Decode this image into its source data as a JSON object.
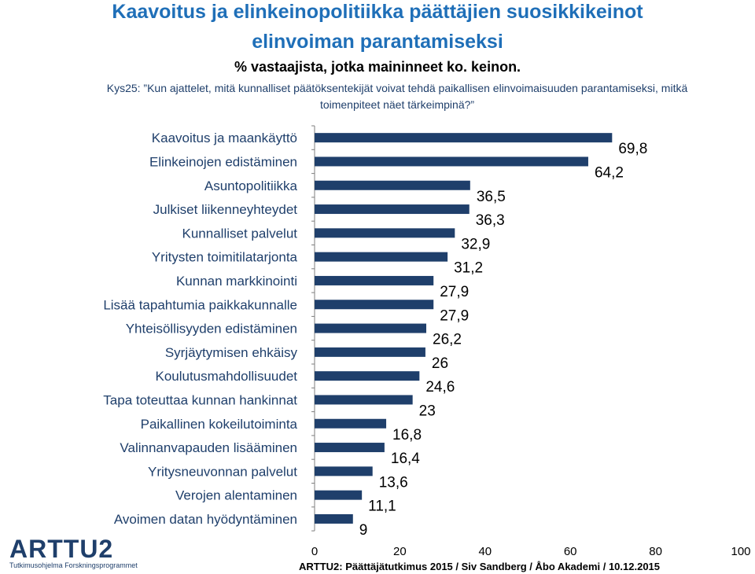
{
  "header": {
    "title_line1": "Kaavoitus ja elinkeinopolitiikka päättäjien suosikkikeinot",
    "title_line2": "elinvoiman parantamiseksi",
    "subtitle": "% vastaajista, jotka maininneet ko. keinon.",
    "question_line1": "Kys25: ”Kun ajattelet, mitä kunnalliset päätöksentekijät voivat tehdä paikallisen elinvoimaisuuden parantamiseksi, mitkä",
    "question_line2": "toimenpiteet näet tärkeimpinä?”"
  },
  "colors": {
    "bar": "#1F3F6B",
    "title": "#1F6FB8"
  },
  "chart_data": {
    "type": "bar",
    "orientation": "horizontal",
    "categories": [
      "Kaavoitus ja maankäyttö",
      "Elinkeinojen edistäminen",
      "Asuntopolitiikka",
      "Julkiset liikenneyhteydet",
      "Kunnalliset palvelut",
      "Yritysten toimitilatarjonta",
      "Kunnan markkinointi",
      "Lisää tapahtumia paikkakunnalle",
      "Yhteisöllisyyden edistäminen",
      "Syrjäytymisen ehkäisy",
      "Koulutusmahdollisuudet",
      "Tapa toteuttaa kunnan hankinnat",
      "Paikallinen kokeilutoiminta",
      "Valinnanvapauden lisääminen",
      "Yritysneuvonnan palvelut",
      "Verojen alentaminen",
      "Avoimen datan hyödyntäminen"
    ],
    "values": [
      69.8,
      64.2,
      36.5,
      36.3,
      32.9,
      31.2,
      27.9,
      27.9,
      26.2,
      26,
      24.6,
      23,
      16.8,
      16.4,
      13.6,
      11.1,
      9
    ],
    "value_labels": [
      "69,8",
      "64,2",
      "36,5",
      "36,3",
      "32,9",
      "31,2",
      "27,9",
      "27,9",
      "26,2",
      "26",
      "24,6",
      "23",
      "16,8",
      "16,4",
      "13,6",
      "11,1",
      "9"
    ],
    "xlim": [
      0,
      100
    ],
    "xticks": [
      "0",
      "20",
      "40",
      "60",
      "80",
      "100"
    ],
    "grid": false,
    "legend": "none"
  },
  "logo": {
    "text": "ARTTU2",
    "subtext": "Tutkimusohjelma Forskningsprogrammet"
  },
  "footer": {
    "text": "ARTTU2: Päättäjätutkimus 2015 / Siv Sandberg / Åbo Akademi / 10.12.2015"
  }
}
